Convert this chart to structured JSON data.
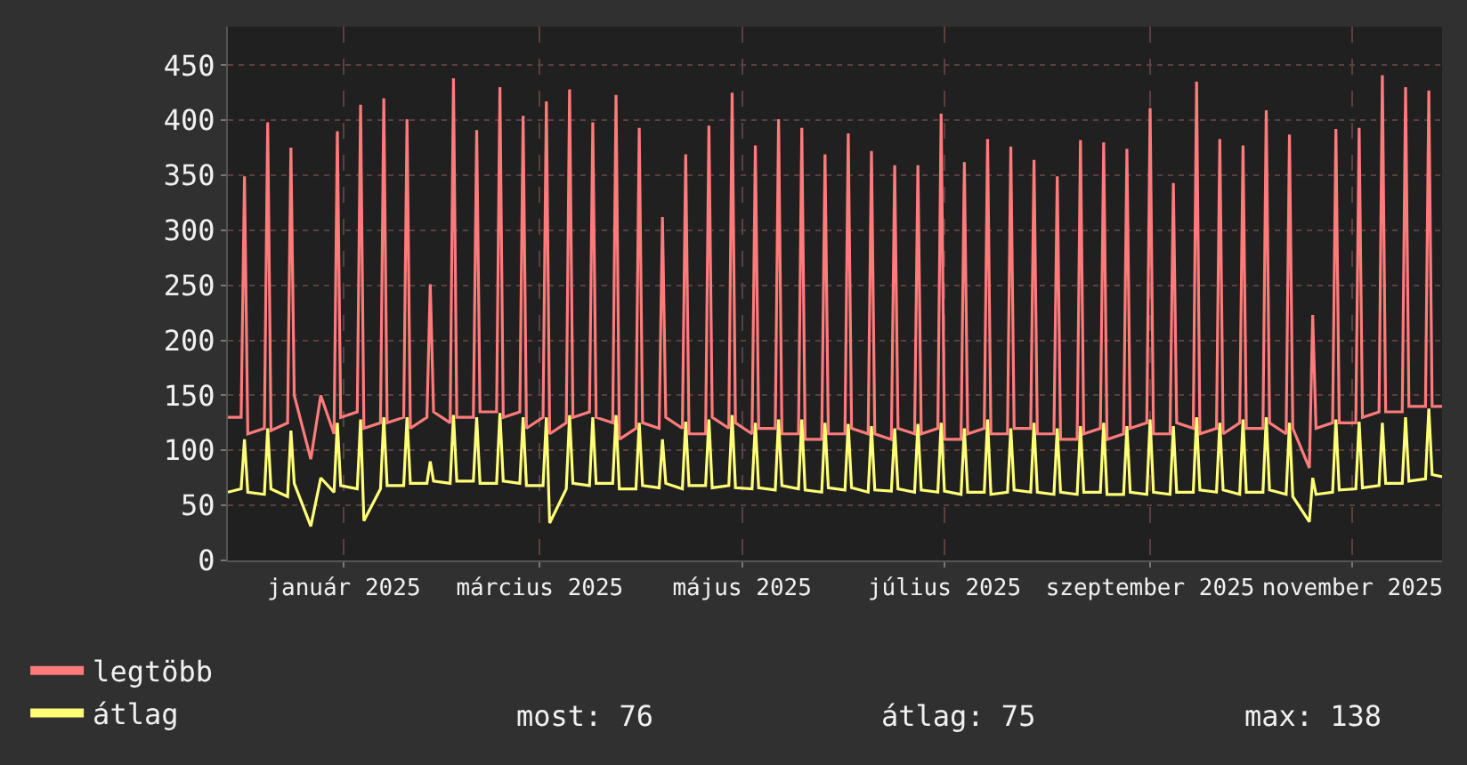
{
  "chart_data": {
    "type": "line",
    "x": [
      "2024-12-11",
      "2024-12-15",
      "2024-12-16",
      "2024-12-17",
      "2024-12-22",
      "2024-12-23",
      "2024-12-24",
      "2024-12-29",
      "2024-12-30",
      "2024-12-31",
      "2025-01-05",
      "2025-01-08",
      "2025-01-12",
      "2025-01-13",
      "2025-01-14",
      "2025-01-19",
      "2025-01-20",
      "2025-01-21",
      "2025-01-26",
      "2025-01-27",
      "2025-01-28",
      "2025-02-02",
      "2025-02-03",
      "2025-02-04",
      "2025-02-09",
      "2025-02-10",
      "2025-02-11",
      "2025-02-16",
      "2025-02-17",
      "2025-02-18",
      "2025-02-23",
      "2025-02-24",
      "2025-02-25",
      "2025-03-02",
      "2025-03-03",
      "2025-03-04",
      "2025-03-09",
      "2025-03-10",
      "2025-03-11",
      "2025-03-16",
      "2025-03-17",
      "2025-03-18",
      "2025-03-23",
      "2025-03-24",
      "2025-03-25",
      "2025-03-30",
      "2025-03-31",
      "2025-04-01",
      "2025-04-06",
      "2025-04-07",
      "2025-04-08",
      "2025-04-13",
      "2025-04-14",
      "2025-04-15",
      "2025-04-20",
      "2025-04-21",
      "2025-04-22",
      "2025-04-27",
      "2025-04-28",
      "2025-04-29",
      "2025-05-04",
      "2025-05-05",
      "2025-05-06",
      "2025-05-11",
      "2025-05-12",
      "2025-05-13",
      "2025-05-18",
      "2025-05-19",
      "2025-05-20",
      "2025-05-25",
      "2025-05-26",
      "2025-05-27",
      "2025-06-01",
      "2025-06-02",
      "2025-06-03",
      "2025-06-08",
      "2025-06-09",
      "2025-06-10",
      "2025-06-15",
      "2025-06-16",
      "2025-06-17",
      "2025-06-22",
      "2025-06-23",
      "2025-06-24",
      "2025-06-29",
      "2025-06-30",
      "2025-07-01",
      "2025-07-06",
      "2025-07-07",
      "2025-07-08",
      "2025-07-13",
      "2025-07-14",
      "2025-07-15",
      "2025-07-20",
      "2025-07-21",
      "2025-07-22",
      "2025-07-27",
      "2025-07-28",
      "2025-07-29",
      "2025-08-03",
      "2025-08-04",
      "2025-08-05",
      "2025-08-10",
      "2025-08-11",
      "2025-08-12",
      "2025-08-17",
      "2025-08-18",
      "2025-08-19",
      "2025-08-24",
      "2025-08-25",
      "2025-08-26",
      "2025-08-31",
      "2025-09-01",
      "2025-09-02",
      "2025-09-07",
      "2025-09-08",
      "2025-09-09",
      "2025-09-14",
      "2025-09-15",
      "2025-09-16",
      "2025-09-21",
      "2025-09-22",
      "2025-09-23",
      "2025-09-28",
      "2025-09-29",
      "2025-09-30",
      "2025-10-05",
      "2025-10-06",
      "2025-10-07",
      "2025-10-12",
      "2025-10-13",
      "2025-10-14",
      "2025-10-19",
      "2025-10-20",
      "2025-10-21",
      "2025-10-26",
      "2025-10-27",
      "2025-10-28",
      "2025-11-02",
      "2025-11-03",
      "2025-11-04",
      "2025-11-09",
      "2025-11-10",
      "2025-11-11",
      "2025-11-16",
      "2025-11-17",
      "2025-11-18",
      "2025-11-23",
      "2025-11-24",
      "2025-11-25",
      "2025-11-30",
      "2025-12-01",
      "2025-12-02",
      "2025-12-07",
      "2025-12-08",
      "2025-12-09",
      "2025-12-12"
    ],
    "series": [
      {
        "name": "legtöbb",
        "color": "#ff7b7b",
        "values": [
          130,
          130,
          349,
          115,
          120,
          398,
          118,
          125,
          375,
          150,
          92,
          150,
          115,
          390,
          130,
          135,
          414,
          120,
          125,
          420,
          125,
          130,
          401,
          120,
          130,
          251,
          135,
          125,
          438,
          130,
          130,
          391,
          135,
          135,
          430,
          130,
          135,
          404,
          120,
          130,
          417,
          115,
          125,
          428,
          130,
          135,
          398,
          130,
          125,
          423,
          110,
          120,
          393,
          125,
          120,
          312,
          130,
          120,
          369,
          115,
          115,
          395,
          130,
          120,
          425,
          125,
          115,
          377,
          120,
          120,
          401,
          115,
          115,
          393,
          110,
          110,
          369,
          115,
          115,
          388,
          120,
          115,
          372,
          115,
          110,
          359,
          120,
          115,
          359,
          115,
          120,
          406,
          110,
          110,
          362,
          115,
          120,
          383,
          115,
          115,
          376,
          120,
          120,
          364,
          115,
          115,
          349,
          110,
          110,
          382,
          115,
          120,
          380,
          110,
          115,
          374,
          120,
          125,
          411,
          115,
          115,
          343,
          125,
          120,
          435,
          115,
          120,
          383,
          115,
          125,
          377,
          120,
          120,
          409,
          125,
          115,
          387,
          120,
          84,
          223,
          120,
          125,
          392,
          125,
          125,
          393,
          130,
          135,
          441,
          135,
          135,
          430,
          140,
          140,
          427,
          140,
          140
        ]
      },
      {
        "name": "átlag",
        "color": "#ffff77",
        "values": [
          62,
          65,
          110,
          62,
          60,
          120,
          65,
          58,
          118,
          70,
          31,
          75,
          62,
          125,
          68,
          65,
          128,
          36,
          65,
          130,
          68,
          68,
          130,
          70,
          70,
          90,
          72,
          70,
          132,
          72,
          72,
          130,
          70,
          70,
          134,
          72,
          70,
          130,
          68,
          68,
          130,
          34,
          65,
          132,
          70,
          68,
          130,
          70,
          70,
          132,
          65,
          65,
          125,
          68,
          66,
          110,
          70,
          65,
          126,
          68,
          68,
          128,
          66,
          68,
          132,
          66,
          65,
          125,
          66,
          64,
          128,
          68,
          65,
          128,
          64,
          62,
          125,
          66,
          64,
          124,
          66,
          62,
          122,
          64,
          63,
          120,
          65,
          62,
          124,
          64,
          62,
          125,
          63,
          60,
          120,
          62,
          62,
          128,
          60,
          62,
          120,
          64,
          62,
          125,
          62,
          60,
          120,
          62,
          60,
          122,
          62,
          62,
          125,
          60,
          60,
          122,
          62,
          60,
          128,
          62,
          60,
          122,
          62,
          62,
          130,
          64,
          62,
          125,
          64,
          60,
          128,
          62,
          62,
          130,
          64,
          60,
          125,
          58,
          35,
          75,
          60,
          62,
          128,
          64,
          65,
          126,
          66,
          68,
          125,
          70,
          70,
          130,
          72,
          74,
          138,
          78,
          76
        ]
      }
    ],
    "xlim": [
      "2024-12-11",
      "2025-12-12"
    ],
    "xticks": [
      {
        "value": "2025-01-15",
        "label": "január 2025"
      },
      {
        "value": "2025-03-15",
        "label": "március 2025"
      },
      {
        "value": "2025-05-15",
        "label": "május 2025"
      },
      {
        "value": "2025-07-15",
        "label": "július 2025"
      },
      {
        "value": "2025-09-15",
        "label": "szeptember 2025"
      },
      {
        "value": "2025-11-15",
        "label": "november 2025"
      }
    ],
    "ylim": [
      0,
      485
    ],
    "yticks": [
      0,
      50,
      100,
      150,
      200,
      250,
      300,
      350,
      400,
      450
    ],
    "grid": true,
    "legend": "bottom left",
    "marker": "none",
    "line_style": "solid",
    "annotations": [
      "most: 76",
      "átlag: 75",
      "max: 138"
    ]
  }
}
